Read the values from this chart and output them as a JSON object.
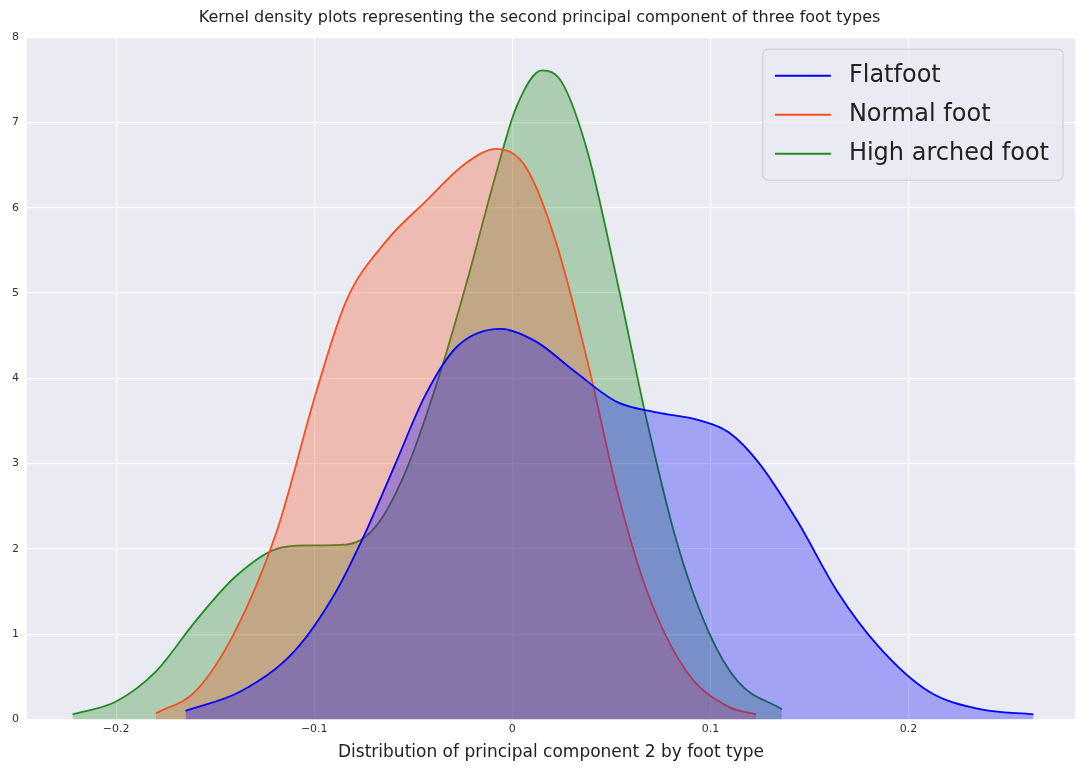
{
  "chart_data": {
    "type": "area",
    "title": "Kernel density plots representing the second principal component of three foot types",
    "xlabel": "Distribution of principal component 2 by foot type",
    "xlim": [
      -0.245,
      0.284
    ],
    "xticks": [
      {
        "value": -0.2,
        "label": "−0.2"
      },
      {
        "value": -0.1,
        "label": "−0.1"
      },
      {
        "value": 0,
        "label": "0"
      },
      0.1,
      0.2
    ],
    "ylim": [
      0,
      8
    ],
    "yticks": [
      0,
      1,
      2,
      3,
      4,
      5,
      6,
      7,
      8
    ],
    "grid": true,
    "legend": "top right",
    "marker": "none",
    "series": [
      {
        "name": "Flatfoot",
        "color": "#0000ff",
        "x": [
          -0.165,
          -0.137,
          -0.11,
          -0.089,
          -0.074,
          -0.059,
          -0.044,
          -0.028,
          -0.006,
          0.012,
          0.032,
          0.053,
          0.073,
          0.094,
          0.109,
          0.124,
          0.144,
          0.164,
          0.185,
          0.21,
          0.236,
          0.263
        ],
        "values": [
          0.1,
          0.33,
          0.8,
          1.5,
          2.2,
          3.0,
          3.8,
          4.37,
          4.58,
          4.43,
          4.07,
          3.72,
          3.6,
          3.51,
          3.37,
          3.02,
          2.32,
          1.5,
          0.85,
          0.33,
          0.12,
          0.06
        ]
      },
      {
        "name": "Normal foot",
        "color": "#f4511e",
        "x": [
          -0.18,
          -0.16,
          -0.14,
          -0.119,
          -0.099,
          -0.084,
          -0.064,
          -0.044,
          -0.023,
          -0.008,
          0.007,
          0.022,
          0.038,
          0.053,
          0.068,
          0.088,
          0.109,
          0.123
        ],
        "values": [
          0.07,
          0.33,
          1.03,
          2.2,
          3.84,
          4.9,
          5.6,
          6.07,
          6.53,
          6.69,
          6.47,
          5.6,
          4.19,
          2.67,
          1.5,
          0.56,
          0.15,
          0.06
        ]
      },
      {
        "name": "High arched foot",
        "color": "#228b22",
        "x": [
          -0.222,
          -0.2,
          -0.18,
          -0.16,
          -0.14,
          -0.119,
          -0.104,
          -0.084,
          -0.069,
          -0.054,
          -0.038,
          -0.023,
          -0.008,
          0.002,
          0.015,
          0.025,
          0.038,
          0.053,
          0.068,
          0.083,
          0.099,
          0.114,
          0.136
        ],
        "values": [
          0.06,
          0.21,
          0.56,
          1.15,
          1.67,
          2.0,
          2.04,
          2.05,
          2.26,
          2.9,
          3.95,
          5.13,
          6.42,
          7.18,
          7.61,
          7.47,
          6.65,
          5.13,
          3.49,
          2.08,
          1.03,
          0.44,
          0.12
        ]
      }
    ]
  }
}
